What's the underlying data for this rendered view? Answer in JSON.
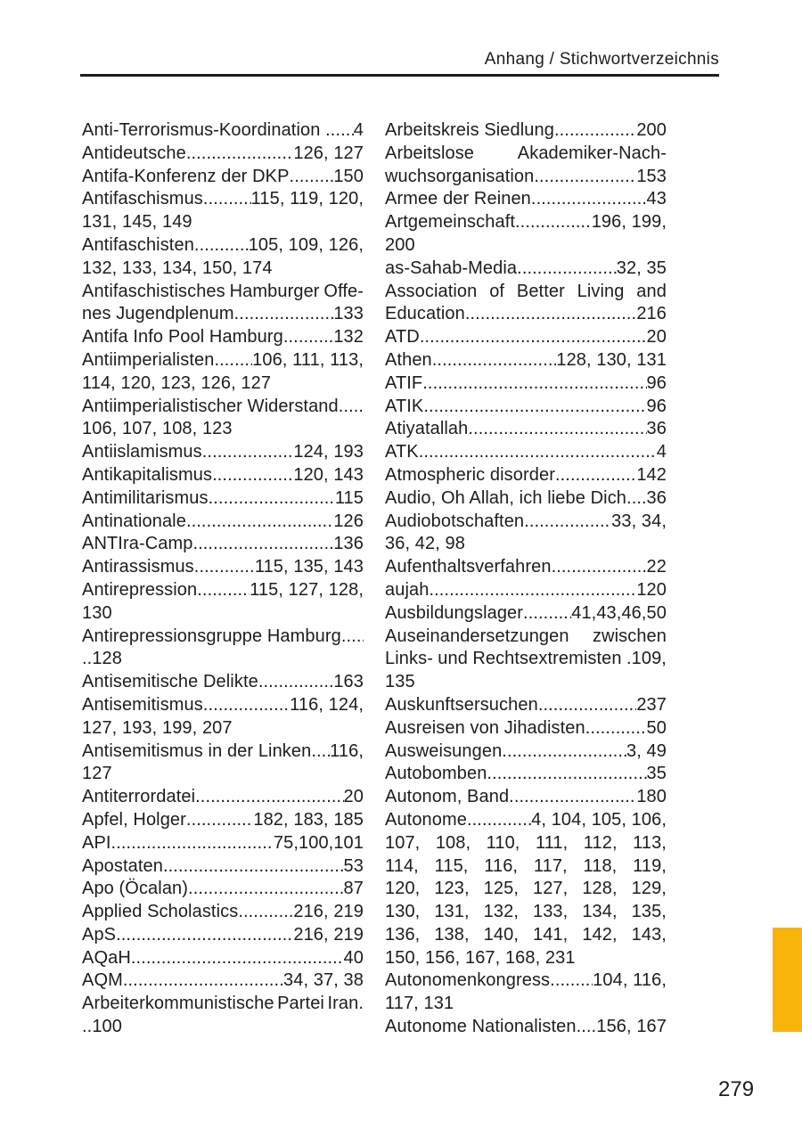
{
  "header": {
    "title": "Anhang / Stichwortverzeichnis"
  },
  "page_number": "279",
  "colors": {
    "accent": "#F9B40C",
    "text": "#1d1d1b"
  },
  "columns": [
    {
      "lines": [
        {
          "type": "fill",
          "term": "Anti-Terrorismus-Koordination ",
          "pages": "4"
        },
        {
          "type": "fill",
          "term": "Antideutsche",
          "pages": "126, 127"
        },
        {
          "type": "fill",
          "term": "Antifa-Konferenz der DKP",
          "pages": "150"
        },
        {
          "type": "fill",
          "term": "Antifaschismus",
          "pages": "115, 119, 120,"
        },
        {
          "type": "left",
          "term": "131, 145, 149"
        },
        {
          "type": "fill",
          "term": "Antifaschisten",
          "pages": "105, 109, 126,"
        },
        {
          "type": "left",
          "term": "132, 133, 134, 150, 174"
        },
        {
          "type": "spread",
          "term": "Antifaschistisches Hamburger Offe-"
        },
        {
          "type": "fill",
          "term": "nes Jugendplenum",
          "pages": "133"
        },
        {
          "type": "fill",
          "term": "Antifa Info Pool Hamburg",
          "pages": "132"
        },
        {
          "type": "fill",
          "term": "Antiimperialisten",
          "pages": "106, 111, 113,"
        },
        {
          "type": "left",
          "term": "114, 120, 123, 126, 127"
        },
        {
          "type": "fill",
          "term": "Antiimperialistischer Widerstand",
          "pages": ""
        },
        {
          "type": "left",
          "term": "106, 107, 108, 123"
        },
        {
          "type": "fill",
          "term": "Antiislamismus",
          "pages": "124, 193"
        },
        {
          "type": "fill",
          "term": "Antikapitalismus",
          "pages": "120, 143"
        },
        {
          "type": "fill",
          "term": "Antimilitarismus",
          "pages": "115"
        },
        {
          "type": "fill",
          "term": "Antinationale",
          "pages": "126"
        },
        {
          "type": "fill",
          "term": "ANTIra-Camp",
          "pages": "136"
        },
        {
          "type": "fill",
          "term": "Antirassismus",
          "pages": "115, 135, 143"
        },
        {
          "type": "fill",
          "term": "Antirepression",
          "pages": "115, 127, 128,"
        },
        {
          "type": "left",
          "term": "130"
        },
        {
          "type": "fill",
          "term": "Antirepressionsgruppe Hamburg",
          "pages": ""
        },
        {
          "type": "left",
          "term": "..128"
        },
        {
          "type": "fill",
          "term": "Antisemitische Delikte",
          "pages": "163"
        },
        {
          "type": "fill",
          "term": "Antisemitismus",
          "pages": "116, 124,"
        },
        {
          "type": "left",
          "term": "127, 193, 199, 207"
        },
        {
          "type": "fill",
          "term": "Antisemitismus in der Linken",
          "pages": "116,"
        },
        {
          "type": "left",
          "term": "127"
        },
        {
          "type": "fill",
          "term": "Antiterrordatei",
          "pages": "20"
        },
        {
          "type": "fill",
          "term": "Apfel, Holger",
          "pages": "182, 183, 185"
        },
        {
          "type": "fill",
          "term": "API",
          "pages": "75,100,101"
        },
        {
          "type": "fill",
          "term": "Apostaten",
          "pages": "53"
        },
        {
          "type": "fill",
          "term": "Apo (Öcalan)",
          "pages": "87"
        },
        {
          "type": "fill",
          "term": "Applied Scholastics",
          "pages": "216, 219"
        },
        {
          "type": "fill",
          "term": "ApS",
          "pages": "216, 219"
        },
        {
          "type": "fill",
          "term": "AQaH",
          "pages": "40"
        },
        {
          "type": "fill",
          "term": "AQM",
          "pages": "34, 37, 38"
        },
        {
          "type": "spread",
          "term": "Arbeiterkommunistische Partei Iran."
        },
        {
          "type": "left",
          "term": "..100"
        }
      ]
    },
    {
      "lines": [
        {
          "type": "fill",
          "term": "Arbeitskreis Siedlung",
          "pages": "200"
        },
        {
          "type": "spread",
          "term": "Arbeitslose Akademiker-Nach-"
        },
        {
          "type": "fill",
          "term": "wuchsorganisation",
          "pages": "153"
        },
        {
          "type": "fill",
          "term": "Armee der Reinen",
          "pages": "43"
        },
        {
          "type": "fill",
          "term": "Artgemeinschaft",
          "pages": "196, 199,"
        },
        {
          "type": "left",
          "term": "200"
        },
        {
          "type": "fill",
          "term": "as-Sahab-Media",
          "pages": "32, 35"
        },
        {
          "type": "spread",
          "term": "Association of Better Living and"
        },
        {
          "type": "fill",
          "term": "Education",
          "pages": "216"
        },
        {
          "type": "fill",
          "term": "ATD",
          "pages": "20"
        },
        {
          "type": "fill",
          "term": "Athen",
          "pages": "128, 130, 131"
        },
        {
          "type": "fill",
          "term": "ATIF",
          "pages": "96"
        },
        {
          "type": "fill",
          "term": "ATIK",
          "pages": "96"
        },
        {
          "type": "fill",
          "term": "Atiyatallah",
          "pages": "36"
        },
        {
          "type": "fill",
          "term": "ATK",
          "pages": "4"
        },
        {
          "type": "fill",
          "term": "Atmospheric disorder",
          "pages": "142"
        },
        {
          "type": "fill",
          "term": "Audio, Oh Allah, ich liebe Dich",
          "pages": "36"
        },
        {
          "type": "fill",
          "term": "Audiobotschaften",
          "pages": "33, 34,"
        },
        {
          "type": "left",
          "term": "36, 42, 98"
        },
        {
          "type": "fill",
          "term": "Aufenthaltsverfahren",
          "pages": "22"
        },
        {
          "type": "fill",
          "term": "aujah",
          "pages": "120"
        },
        {
          "type": "fill",
          "term": "Ausbildungslager",
          "pages": "41,43,46,50"
        },
        {
          "type": "spread",
          "term": "Auseinandersetzungen zwischen"
        },
        {
          "type": "spread",
          "term": "Links- und Rechtsextremisten .109,"
        },
        {
          "type": "left",
          "term": "135"
        },
        {
          "type": "fill",
          "term": "Auskunftsersuchen",
          "pages": "237"
        },
        {
          "type": "fill",
          "term": "Ausreisen von Jihadisten",
          "pages": "50"
        },
        {
          "type": "fill",
          "term": "Ausweisungen",
          "pages": "3, 49"
        },
        {
          "type": "fill",
          "term": "Autobomben",
          "pages": "35"
        },
        {
          "type": "fill",
          "term": "Autonom, Band",
          "pages": "180"
        },
        {
          "type": "fill",
          "term": "Autonome",
          "pages": "4, 104, 105, 106,"
        },
        {
          "type": "spread",
          "term": "107, 108, 110, 111, 112, 113,"
        },
        {
          "type": "spread",
          "term": "114, 115, 116, 117, 118, 119,"
        },
        {
          "type": "spread",
          "term": "120, 123, 125, 127, 128, 129,"
        },
        {
          "type": "spread",
          "term": "130, 131, 132, 133, 134, 135,"
        },
        {
          "type": "spread",
          "term": "136, 138, 140, 141, 142, 143,"
        },
        {
          "type": "left",
          "term": "150, 156, 167, 168, 231"
        },
        {
          "type": "fill",
          "term": "Autonomenkongress",
          "pages": "104, 116,"
        },
        {
          "type": "left",
          "term": "117, 131"
        },
        {
          "type": "fill",
          "term": "Autonome Nationalisten",
          "pages": "156, 167"
        }
      ]
    }
  ]
}
